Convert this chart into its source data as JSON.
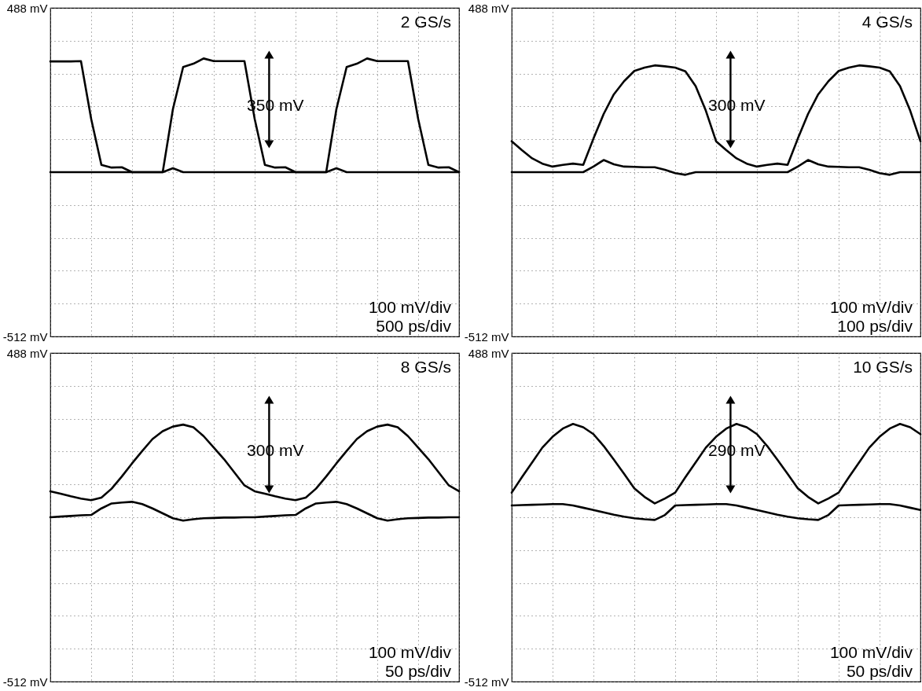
{
  "chart_data": [
    {
      "type": "line",
      "annotations": [
        "2 GS/s",
        "350 mV",
        "100 mV/div",
        "500 ps/div"
      ],
      "categories": [
        null,
        null,
        null,
        null,
        null,
        null,
        null,
        null,
        null,
        null,
        null,
        null,
        null,
        null,
        null,
        null,
        null,
        null,
        null,
        null,
        null,
        null,
        null,
        null,
        null,
        null,
        null,
        null,
        null,
        null,
        null,
        null,
        null,
        null,
        null,
        null,
        null,
        null,
        null,
        null,
        null
      ],
      "ylim": [
        -512,
        488
      ],
      "yticks": [
        {
          "value": 488,
          "label": "488 mV"
        },
        {
          "value": 388,
          "label": null
        },
        {
          "value": 288,
          "label": null
        },
        {
          "value": 188,
          "label": null
        },
        {
          "value": 88,
          "label": null
        },
        {
          "value": -12,
          "label": null
        },
        {
          "value": -112,
          "label": null
        },
        {
          "value": -212,
          "label": null
        },
        {
          "value": -312,
          "label": null
        },
        {
          "value": -412,
          "label": null
        },
        {
          "value": -512,
          "label": "-512 mV"
        }
      ],
      "tick_labels": "y",
      "grid": true,
      "series": [
        {
          "color": "#000000",
          "values": [
            325,
            325,
            325,
            326,
            150,
            10,
            2,
            3,
            -12,
            -12,
            -12,
            -12,
            180,
            308,
            318,
            334,
            326,
            326,
            326,
            326,
            150,
            10,
            2,
            3,
            -12,
            -12,
            -12,
            -12,
            180,
            308,
            318,
            334,
            326,
            326,
            326,
            326,
            150,
            10,
            2,
            3,
            -12
          ]
        },
        {
          "color": "#000000",
          "values": [
            -12,
            -12,
            -12,
            -12,
            -12,
            -12,
            -12,
            -12,
            -12,
            -12,
            -12,
            -12,
            0,
            -12,
            -12,
            -12,
            -12,
            -12,
            -12,
            -12,
            -12,
            -12,
            -12,
            -12,
            -12,
            -12,
            -12,
            -12,
            0,
            -12,
            -12,
            -12,
            -12,
            -12,
            -12,
            -12,
            -12,
            -12,
            -12,
            -12,
            -12
          ]
        }
      ]
    },
    {
      "type": "line",
      "annotations": [
        "4 GS/s",
        "300 mV",
        "100 mV/div",
        "100 ps/div"
      ],
      "categories": [
        null,
        null,
        null,
        null,
        null,
        null,
        null,
        null,
        null,
        null,
        null,
        null,
        null,
        null,
        null,
        null,
        null,
        null,
        null,
        null,
        null,
        null,
        null,
        null,
        null,
        null,
        null,
        null,
        null,
        null,
        null,
        null,
        null,
        null,
        null,
        null,
        null,
        null,
        null,
        null,
        null
      ],
      "ylim": [
        -512,
        488
      ],
      "yticks": [
        {
          "value": 488,
          "label": "488 mV"
        },
        {
          "value": 388,
          "label": null
        },
        {
          "value": 288,
          "label": null
        },
        {
          "value": 188,
          "label": null
        },
        {
          "value": 88,
          "label": null
        },
        {
          "value": -12,
          "label": null
        },
        {
          "value": -112,
          "label": null
        },
        {
          "value": -212,
          "label": null
        },
        {
          "value": -312,
          "label": null
        },
        {
          "value": -412,
          "label": null
        },
        {
          "value": -512,
          "label": "-512 mV"
        }
      ],
      "tick_labels": "y",
      "grid": true,
      "series": [
        {
          "color": "#000000",
          "values": [
            82,
            55,
            30,
            14,
            5,
            10,
            14,
            10,
            90,
            165,
            225,
            265,
            296,
            306,
            313,
            310,
            306,
            295,
            250,
            175,
            82,
            55,
            30,
            14,
            5,
            10,
            14,
            10,
            90,
            165,
            225,
            265,
            296,
            306,
            313,
            310,
            306,
            295,
            250,
            175,
            82
          ]
        },
        {
          "color": "#000000",
          "values": [
            -12,
            -12,
            -12,
            -12,
            -12,
            -12,
            -12,
            -12,
            5,
            25,
            12,
            5,
            4,
            3,
            3,
            -5,
            -15,
            -20,
            -12,
            -12,
            -12,
            -12,
            -12,
            -12,
            -12,
            -12,
            -12,
            -12,
            5,
            25,
            12,
            5,
            4,
            3,
            3,
            -5,
            -15,
            -20,
            -12,
            -12,
            -12
          ]
        }
      ]
    },
    {
      "type": "line",
      "annotations": [
        "8 GS/s",
        "300 mV",
        "100 mV/div",
        "50 ps/div"
      ],
      "categories": [
        null,
        null,
        null,
        null,
        null,
        null,
        null,
        null,
        null,
        null,
        null,
        null,
        null,
        null,
        null,
        null,
        null,
        null,
        null,
        null,
        null,
        null,
        null,
        null,
        null,
        null,
        null,
        null,
        null,
        null,
        null,
        null,
        null,
        null,
        null,
        null,
        null,
        null,
        null,
        null,
        null
      ],
      "ylim": [
        -512,
        488
      ],
      "yticks": [
        {
          "value": 488,
          "label": "488 mV"
        },
        {
          "value": 388,
          "label": null
        },
        {
          "value": 288,
          "label": null
        },
        {
          "value": 188,
          "label": null
        },
        {
          "value": 88,
          "label": null
        },
        {
          "value": -12,
          "label": null
        },
        {
          "value": -112,
          "label": null
        },
        {
          "value": -212,
          "label": null
        },
        {
          "value": -312,
          "label": null
        },
        {
          "value": -412,
          "label": null
        },
        {
          "value": -512,
          "label": "-512 mV"
        }
      ],
      "tick_labels": "y",
      "grid": true,
      "series": [
        {
          "color": "#000000",
          "values": [
            67,
            60,
            52,
            45,
            40,
            48,
            75,
            112,
            152,
            190,
            226,
            250,
            264,
            270,
            262,
            235,
            200,
            165,
            125,
            85,
            67,
            60,
            52,
            45,
            40,
            48,
            75,
            112,
            152,
            190,
            226,
            250,
            264,
            270,
            262,
            235,
            200,
            165,
            125,
            85,
            67
          ]
        },
        {
          "color": "#000000",
          "values": [
            -12,
            -10,
            -8,
            -6,
            -5,
            15,
            30,
            33,
            35,
            28,
            15,
            0,
            -15,
            -22,
            -18,
            -15,
            -14,
            -13,
            -13,
            -12,
            -12,
            -10,
            -8,
            -6,
            -5,
            15,
            30,
            33,
            35,
            28,
            15,
            0,
            -15,
            -22,
            -18,
            -15,
            -14,
            -13,
            -13,
            -12,
            -12
          ]
        }
      ]
    },
    {
      "type": "line",
      "annotations": [
        "10 GS/s",
        "290 mV",
        "100 mV/div",
        "50 ps/div"
      ],
      "categories": [
        null,
        null,
        null,
        null,
        null,
        null,
        null,
        null,
        null,
        null,
        null,
        null,
        null,
        null,
        null,
        null,
        null,
        null,
        null,
        null,
        null,
        null,
        null,
        null,
        null,
        null,
        null,
        null,
        null,
        null,
        null,
        null,
        null,
        null,
        null,
        null,
        null,
        null,
        null,
        null,
        null
      ],
      "ylim": [
        -512,
        488
      ],
      "yticks": [
        {
          "value": 488,
          "label": "488 mV"
        },
        {
          "value": 388,
          "label": null
        },
        {
          "value": 288,
          "label": null
        },
        {
          "value": 188,
          "label": null
        },
        {
          "value": 88,
          "label": null
        },
        {
          "value": -12,
          "label": null
        },
        {
          "value": -112,
          "label": null
        },
        {
          "value": -212,
          "label": null
        },
        {
          "value": -312,
          "label": null
        },
        {
          "value": -412,
          "label": null
        },
        {
          "value": -512,
          "label": "-512 mV"
        }
      ],
      "tick_labels": "y",
      "grid": true,
      "series": [
        {
          "color": "#000000",
          "values": [
            63,
            110,
            155,
            200,
            233,
            258,
            272,
            262,
            241,
            205,
            163,
            120,
            76,
            50,
            30,
            45,
            63,
            110,
            155,
            200,
            233,
            258,
            272,
            262,
            241,
            205,
            163,
            120,
            76,
            50,
            30,
            45,
            63,
            110,
            155,
            200,
            233,
            258,
            272,
            262,
            241
          ]
        },
        {
          "color": "#000000",
          "values": [
            24,
            25,
            26,
            27,
            28,
            28,
            24,
            17,
            10,
            3,
            -4,
            -10,
            -15,
            -18,
            -20,
            -5,
            24,
            25,
            26,
            27,
            28,
            28,
            24,
            17,
            10,
            3,
            -4,
            -10,
            -15,
            -18,
            -20,
            -5,
            24,
            25,
            26,
            27,
            28,
            28,
            24,
            17,
            10
          ]
        }
      ]
    }
  ]
}
